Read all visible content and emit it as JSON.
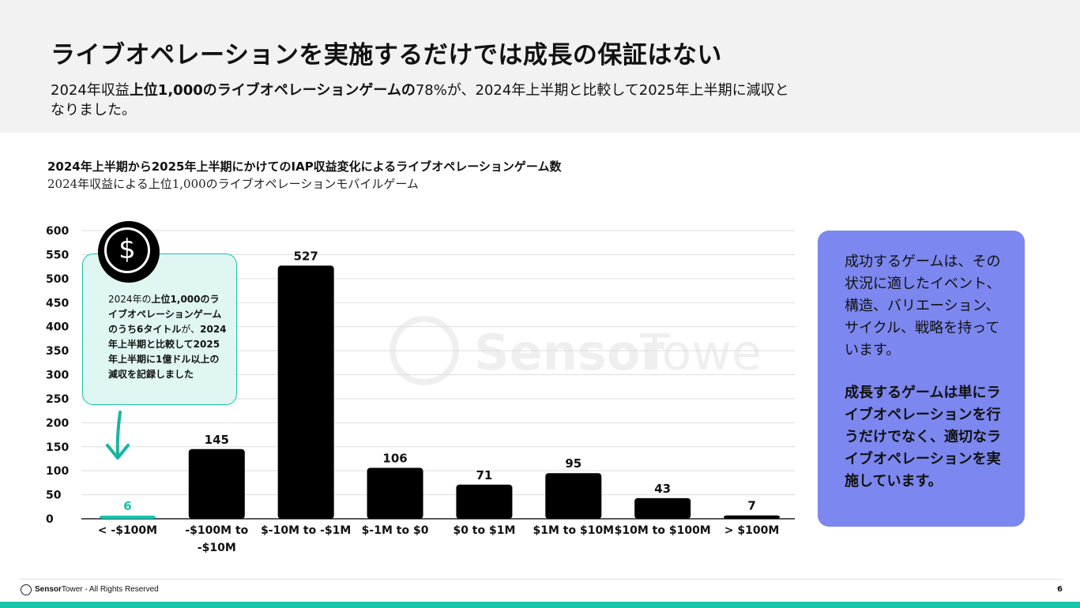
{
  "header": {
    "title": "ライブオペレーションを実施するだけでは成長の保証はない",
    "subtitle_part1": "2024年収益",
    "subtitle_bold": "上位1,000のライブオペレーションゲームの",
    "subtitle_part2": "78%が、2024年上半期と比較して2025年上半期に減収となりました。"
  },
  "chart_data": {
    "type": "bar",
    "title": "2024年上半期から2025年上半期にかけてのIAP収益変化によるライブオペレーションゲーム数",
    "subtitle": "2024年収益による上位1,000のライブオペレーションモバイルゲーム",
    "categories": [
      "< -$100M",
      "-$100M to\n-$10M",
      "$-10M to -$1M",
      "$-1M to $0",
      "$0 to $1M",
      "$1M to $10M",
      "$10M to $100M",
      "> $100M"
    ],
    "values": [
      6,
      145,
      527,
      106,
      71,
      95,
      43,
      7
    ],
    "highlight_index": 0,
    "ylim": [
      0,
      600
    ],
    "yticks": [
      0,
      50,
      100,
      150,
      200,
      250,
      300,
      350,
      400,
      450,
      500,
      550,
      600
    ],
    "colors": {
      "bar": "#000000",
      "highlight": "#17c3ad",
      "grid": "#dddddd"
    }
  },
  "callout": {
    "icon": "dollar-coin-icon",
    "symbol": "$",
    "t1": "2024年の",
    "t2": "上位1,000のライブオペレーションゲームのうち6タイトル",
    "t3": "が、",
    "t4": "2024年上半期と比較して2025年上半期に1億ドル以上の減収を記録しました"
  },
  "side": {
    "p1": "成功するゲームは、その状況に適したイベント、構造、バリエーション、サイクル、戦略を持っています。",
    "p2": "成長するゲームは単にライブオペレーションを行うだけでなく、適切なライブオペレーションを実施しています。"
  },
  "watermark": {
    "text1": "Sensor",
    "text2": "Tower"
  },
  "footer": {
    "brand1": "Sensor",
    "brand2": "Tower",
    "rights": " - All Rights Reserved",
    "page": "6"
  },
  "colors": {
    "accent": "#16c6ab",
    "side_box": "#7c87ef",
    "callout_bg": "#e0f6f3"
  }
}
